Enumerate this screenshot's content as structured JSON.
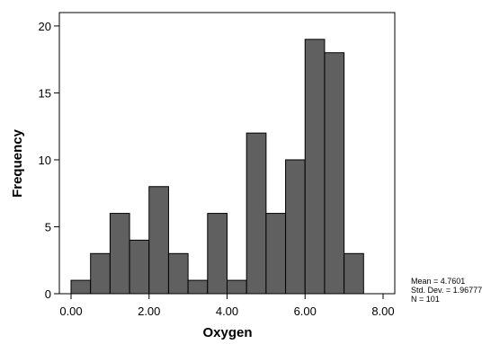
{
  "chart_data": {
    "type": "bar",
    "subtype": "histogram",
    "xlabel": "Oxygen",
    "ylabel": "Frequency",
    "xlim": [
      -0.3,
      8.3
    ],
    "ylim": [
      0,
      21
    ],
    "x_ticks": [
      0,
      2,
      4,
      6,
      8
    ],
    "x_tick_labels": [
      "0.00",
      "2.00",
      "4.00",
      "6.00",
      "8.00"
    ],
    "y_ticks": [
      0,
      5,
      10,
      15,
      20
    ],
    "y_tick_labels": [
      "0",
      "5",
      "10",
      "15",
      "20"
    ],
    "bin_width": 0.5,
    "bins": [
      {
        "start": 0.0,
        "end": 0.5,
        "value": 1
      },
      {
        "start": 0.5,
        "end": 1.0,
        "value": 3
      },
      {
        "start": 1.0,
        "end": 1.5,
        "value": 6
      },
      {
        "start": 1.5,
        "end": 2.0,
        "value": 4
      },
      {
        "start": 2.0,
        "end": 2.5,
        "value": 8
      },
      {
        "start": 2.5,
        "end": 3.0,
        "value": 3
      },
      {
        "start": 3.0,
        "end": 3.5,
        "value": 1
      },
      {
        "start": 3.5,
        "end": 4.0,
        "value": 6
      },
      {
        "start": 4.0,
        "end": 4.5,
        "value": 1
      },
      {
        "start": 4.5,
        "end": 5.0,
        "value": 12
      },
      {
        "start": 5.0,
        "end": 5.5,
        "value": 6
      },
      {
        "start": 5.5,
        "end": 6.0,
        "value": 10
      },
      {
        "start": 6.0,
        "end": 6.5,
        "value": 19
      },
      {
        "start": 6.5,
        "end": 7.0,
        "value": 18
      },
      {
        "start": 7.0,
        "end": 7.5,
        "value": 3
      }
    ],
    "bar_color": "#606060",
    "bar_edge_color": "#000000",
    "grid": false,
    "stats": {
      "mean": "Mean = 4.7601",
      "std_dev": "Std. Dev. = 1.96777",
      "n": "N = 101"
    }
  }
}
